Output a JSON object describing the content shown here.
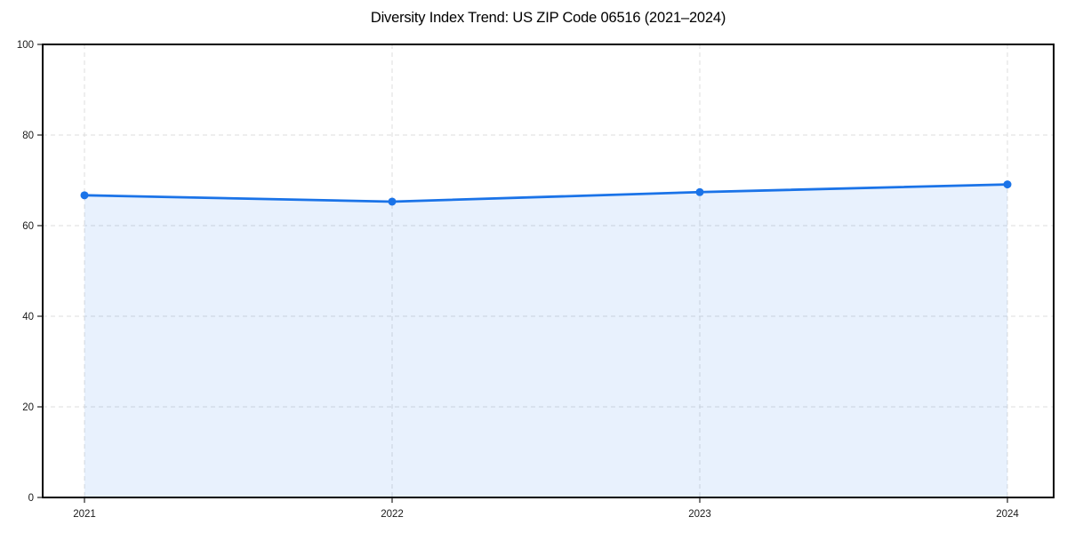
{
  "title": "Diversity Index Trend: US ZIP Code 06516 (2021–2024)",
  "chart_data": {
    "type": "area",
    "title": "Diversity Index Trend: US ZIP Code 06516 (2021–2024)",
    "categories": [
      "2021",
      "2022",
      "2023",
      "2024"
    ],
    "series": [
      {
        "name": "Diversity Index",
        "values": [
          66.7,
          65.3,
          67.4,
          69.1
        ]
      }
    ],
    "xlabel": "",
    "ylabel": "",
    "ylim": [
      0,
      100
    ],
    "yticks": [
      0,
      20,
      40,
      60,
      80,
      100
    ],
    "grid": true,
    "grid_style": "dashed",
    "legend": "none",
    "colors": {
      "line": "#1a73e8",
      "marker": "#1a73e8",
      "fill": "#1a73e8",
      "fill_opacity": "0.10",
      "grid": "#dcdcdc",
      "spine": "#000000",
      "tick": "#222222",
      "tick_label": "#1a1a1a",
      "background": "#ffffff"
    }
  }
}
